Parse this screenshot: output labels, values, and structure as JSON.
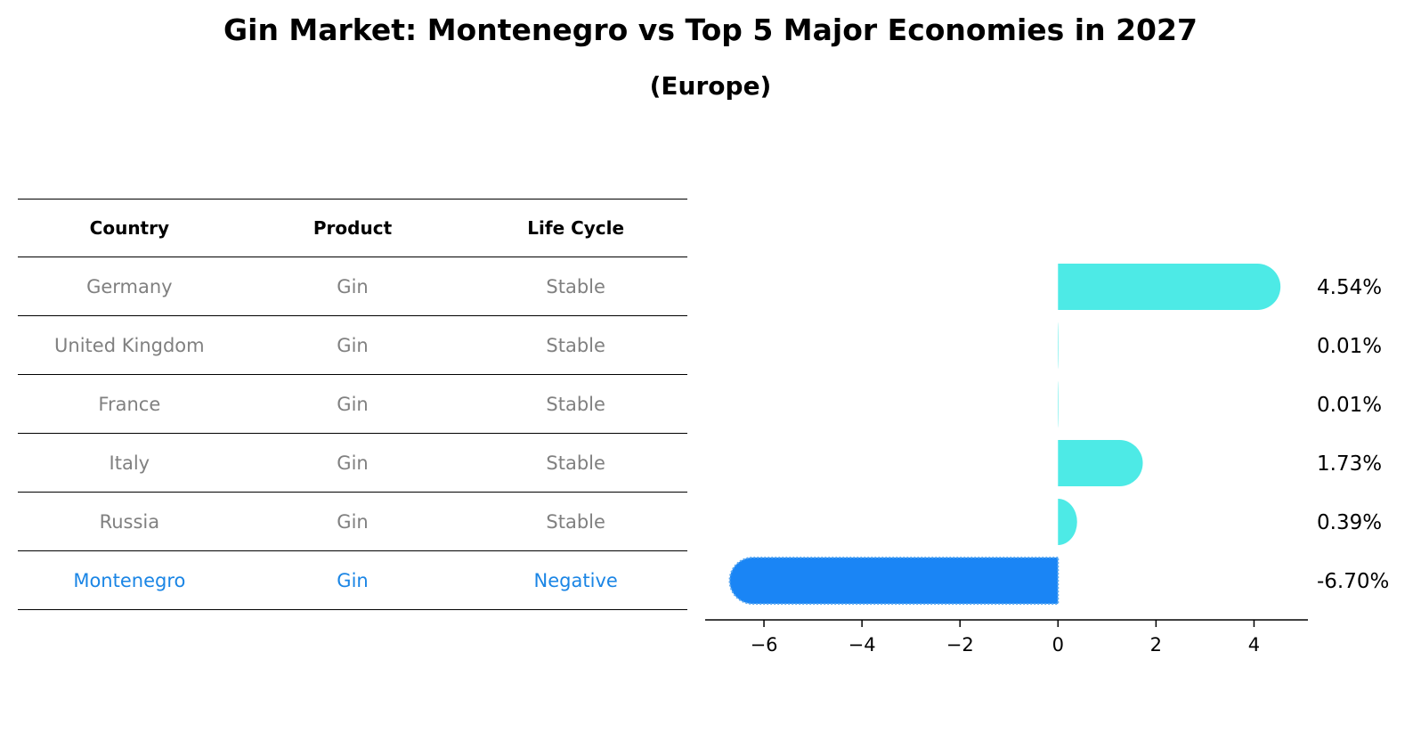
{
  "header": {
    "title": "Gin Market: Montenegro vs Top 5 Major Economies in 2027",
    "subtitle": "(Europe)"
  },
  "table": {
    "columns": [
      "Country",
      "Product",
      "Life Cycle"
    ],
    "rows": [
      [
        "Germany",
        "Gin",
        "Stable"
      ],
      [
        "United Kingdom",
        "Gin",
        "Stable"
      ],
      [
        "France",
        "Gin",
        "Stable"
      ],
      [
        "Italy",
        "Gin",
        "Stable"
      ],
      [
        "Russia",
        "Gin",
        "Stable"
      ],
      [
        "Montenegro",
        "Gin",
        "Negative"
      ]
    ],
    "highlight_row": 5
  },
  "colors": {
    "text_muted": "#808080",
    "highlight": "#1a85e5",
    "bar_positive": "#4deae6",
    "bar_negative": "#1a85f5"
  },
  "chart_data": {
    "type": "bar",
    "orientation": "horizontal",
    "categories": [
      "Germany",
      "United Kingdom",
      "France",
      "Italy",
      "Russia",
      "Montenegro"
    ],
    "values": [
      4.54,
      0.01,
      0.01,
      1.73,
      0.39,
      -6.7
    ],
    "value_labels": [
      "4.54%",
      "0.01%",
      "0.01%",
      "1.73%",
      "0.39%",
      "-6.70%"
    ],
    "xlim": [
      -7.2,
      5.1
    ],
    "xticks": [
      -6,
      -4,
      -2,
      0,
      2,
      4
    ],
    "xtick_labels": [
      "−6",
      "−4",
      "−2",
      "0",
      "2",
      "4"
    ],
    "grid": false,
    "legend": false
  }
}
